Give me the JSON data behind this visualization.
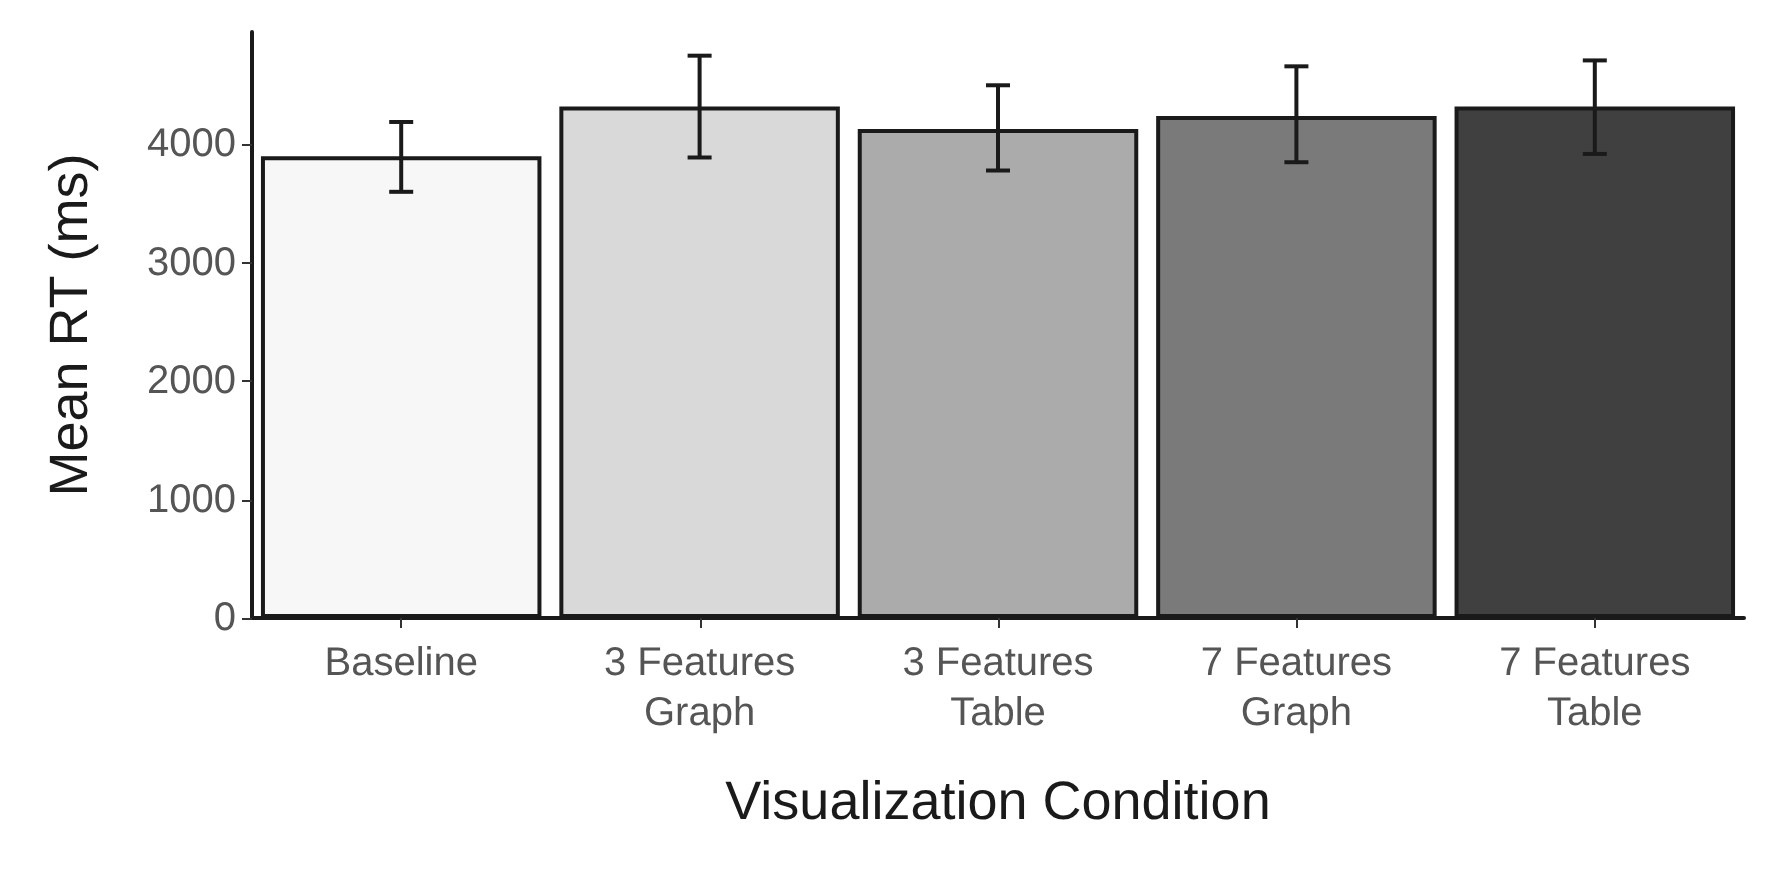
{
  "chart_data": {
    "type": "bar",
    "xlabel": "Visualization Condition",
    "ylabel": "Mean RT (ms)",
    "categories": [
      "Baseline",
      "3 Features\nGraph",
      "3 Features\nTable",
      "7 Features\nGraph",
      "7 Features\nTable"
    ],
    "values": [
      3900,
      4320,
      4130,
      4240,
      4320
    ],
    "colors": [
      "#f7f7f7",
      "#d9d9d9",
      "#aaabaa",
      "#7a7a7a",
      "#404040"
    ],
    "errors": [
      [
        3600,
        4190
      ],
      [
        3890,
        4750
      ],
      [
        3780,
        4500
      ],
      [
        3850,
        4660
      ],
      [
        3920,
        4710
      ]
    ],
    "ylim": [
      0,
      4950
    ],
    "yticks": [
      0,
      1000,
      2000,
      3000,
      4000
    ],
    "grid": false
  }
}
